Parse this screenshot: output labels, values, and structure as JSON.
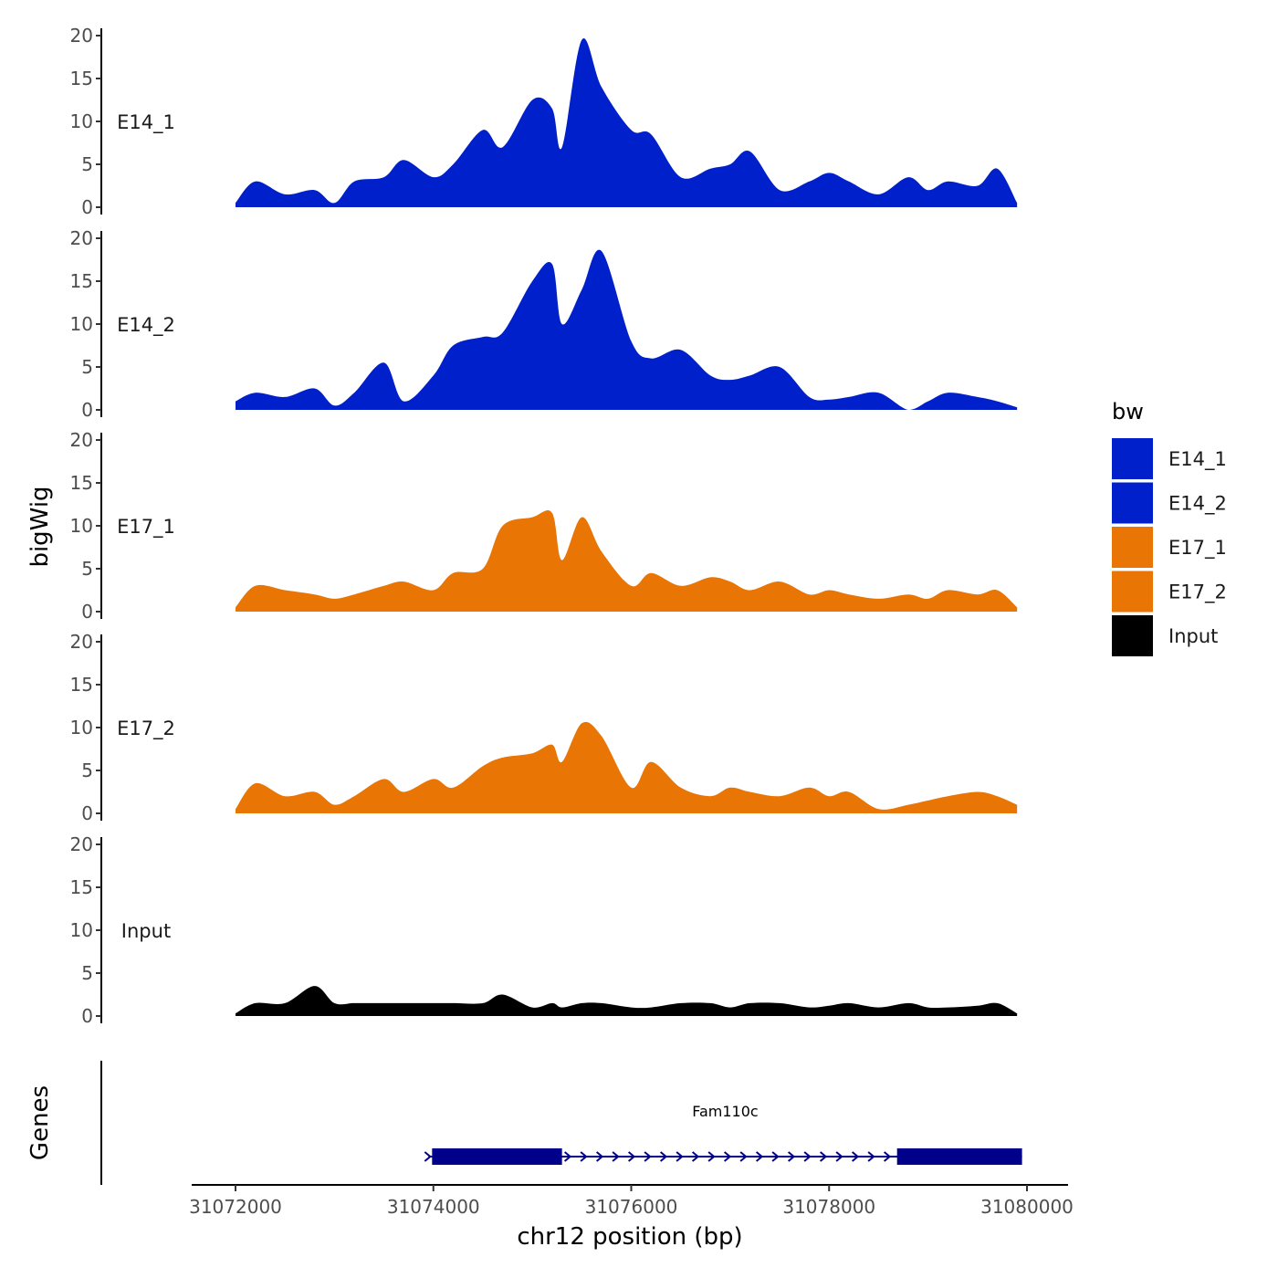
{
  "chart_data": {
    "type": "area",
    "subtype": "genome-coverage-tracks",
    "y_axis_title": "bigWig",
    "x_axis_title": "chr12 position (bp)",
    "genes_axis_title": "Genes",
    "x_range": [
      31072000,
      31080000
    ],
    "x_ticks": [
      31072000,
      31074000,
      31076000,
      31078000,
      31080000
    ],
    "x_tick_labels": [
      "31072000",
      "31074000",
      "31076000",
      "31078000",
      "31080000"
    ],
    "y_range": [
      0,
      20
    ],
    "y_ticks": [
      0,
      5,
      10,
      15,
      20
    ],
    "y_tick_labels": [
      "0",
      "5",
      "10",
      "15",
      "20"
    ],
    "legend": {
      "title": "bw",
      "entries": [
        {
          "label": "E14_1",
          "color": "#0020CC"
        },
        {
          "label": "E14_2",
          "color": "#0020CC"
        },
        {
          "label": "E17_1",
          "color": "#E87504"
        },
        {
          "label": "E17_2",
          "color": "#E87504"
        },
        {
          "label": "Input",
          "color": "#000000"
        }
      ]
    },
    "series_x": [
      31072000,
      31072200,
      31072500,
      31072800,
      31073000,
      31073200,
      31073500,
      31073700,
      31074000,
      31074200,
      31074500,
      31074700,
      31075000,
      31075200,
      31075300,
      31075500,
      31075700,
      31076000,
      31076200,
      31076500,
      31076800,
      31077000,
      31077200,
      31077500,
      31077800,
      31078000,
      31078200,
      31078500,
      31078800,
      31079000,
      31079200,
      31079500,
      31079700,
      31079900
    ],
    "series": [
      {
        "name": "E14_1",
        "color": "#0020CC",
        "values": [
          0.5,
          3,
          1.5,
          2,
          0.5,
          3,
          3.5,
          5.5,
          3.5,
          5,
          9,
          7,
          12.5,
          11.5,
          7,
          19.5,
          14,
          9,
          8.5,
          3.5,
          4.5,
          5,
          6.5,
          2,
          3,
          4,
          3,
          1.5,
          3.5,
          2,
          3,
          2.5,
          4.5,
          0.5
        ]
      },
      {
        "name": "E14_2",
        "color": "#0020CC",
        "values": [
          1,
          2,
          1.5,
          2.5,
          0.5,
          2,
          5.5,
          1,
          4,
          7.5,
          8.5,
          9,
          15,
          17,
          10,
          14,
          18.5,
          8,
          6,
          7,
          4,
          3.5,
          4,
          5,
          1.5,
          1.2,
          1.5,
          2,
          0,
          1,
          2,
          1.5,
          1,
          0.3
        ]
      },
      {
        "name": "E17_1",
        "color": "#E87504",
        "values": [
          0.5,
          3,
          2.5,
          2,
          1.5,
          2,
          3,
          3.5,
          2.5,
          4.5,
          5,
          10,
          11,
          11.5,
          6,
          11,
          7,
          3,
          4.5,
          3,
          4,
          3.5,
          2.5,
          3.5,
          2,
          2.5,
          2,
          1.5,
          2,
          1.5,
          2.5,
          2,
          2.5,
          0.5
        ]
      },
      {
        "name": "E17_2",
        "color": "#E87504",
        "values": [
          0.5,
          3.5,
          2,
          2.5,
          1,
          2,
          4,
          2.5,
          4,
          3,
          5.5,
          6.5,
          7,
          8,
          6,
          10.5,
          9,
          3,
          6,
          3,
          2,
          3,
          2.5,
          2,
          3,
          2,
          2.5,
          0.5,
          1,
          1.5,
          2,
          2.5,
          2,
          1
        ]
      },
      {
        "name": "Input",
        "color": "#000000",
        "values": [
          0.3,
          1.5,
          1.5,
          3.5,
          1.5,
          1.5,
          1.5,
          1.5,
          1.5,
          1.5,
          1.5,
          2.5,
          1,
          1.5,
          1,
          1.5,
          1.5,
          1,
          1,
          1.5,
          1.5,
          1,
          1.5,
          1.5,
          1,
          1.2,
          1.5,
          1,
          1.5,
          1,
          1,
          1.2,
          1.5,
          0.3
        ]
      }
    ],
    "gene": {
      "name": "Fam110c",
      "strand": "+",
      "start": 31073950,
      "end": 31079950,
      "exons": [
        [
          31073950,
          31075300
        ],
        [
          31078650,
          31079950
        ]
      ],
      "color": "#00008B"
    }
  }
}
